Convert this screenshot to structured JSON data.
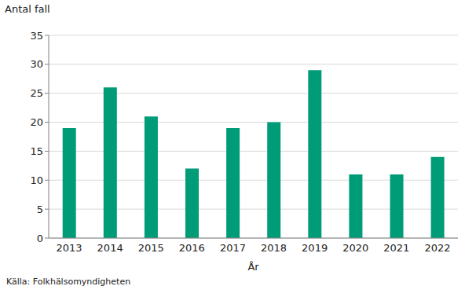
{
  "chart_data": {
    "type": "bar",
    "x_label": "År",
    "y_label": "Antal fall",
    "source": "Källa: Folkhälsomyndigheten",
    "categories": [
      "2013",
      "2014",
      "2015",
      "2016",
      "2017",
      "2018",
      "2019",
      "2020",
      "2021",
      "2022"
    ],
    "values": [
      19,
      26,
      21,
      12,
      19,
      20,
      29,
      11,
      11,
      14
    ],
    "color": "#009b77",
    "ylim": [
      0,
      35
    ],
    "yticks": [
      0,
      5,
      10,
      15,
      20,
      25,
      30,
      35
    ],
    "grid": true
  }
}
